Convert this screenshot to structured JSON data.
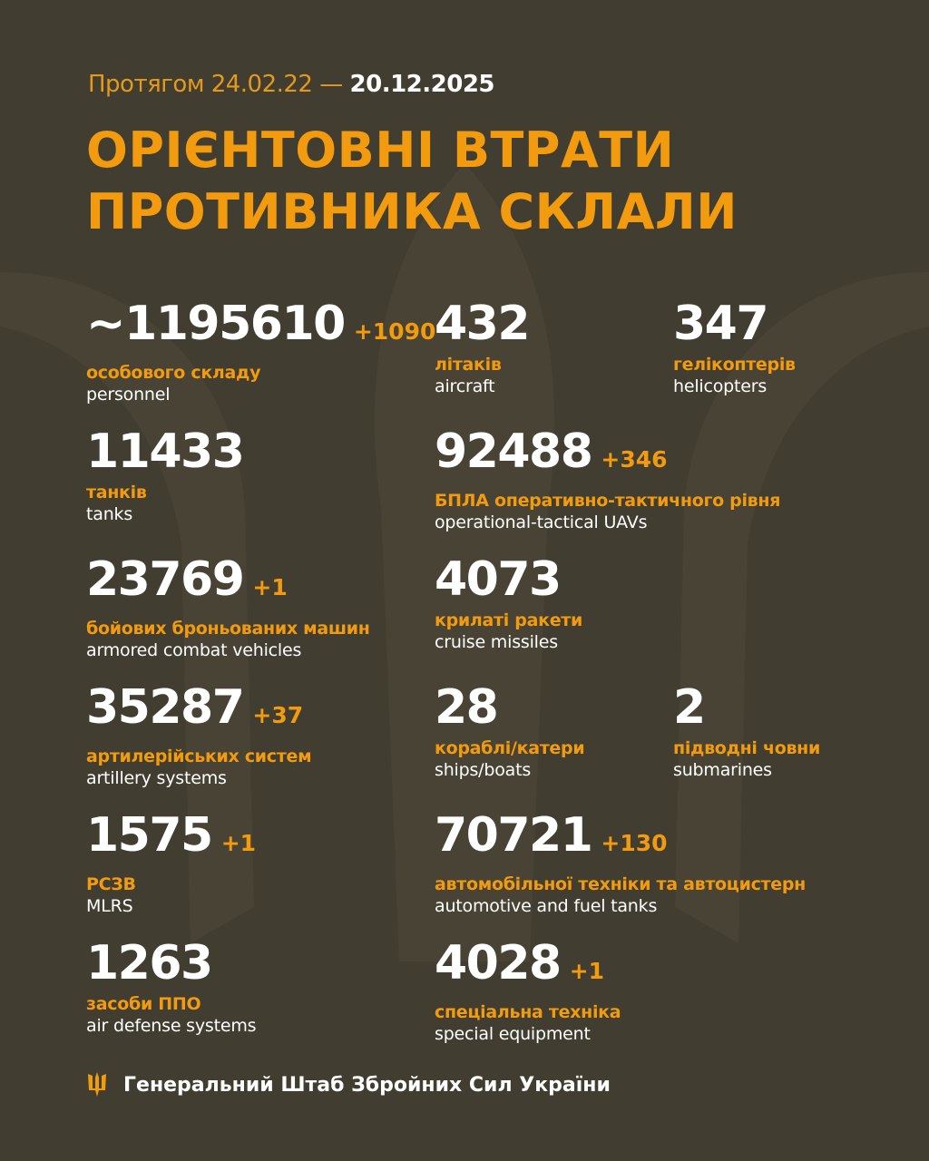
{
  "header": {
    "period_prefix": "Протягом 24.02.22 —",
    "period_end": "20.12.2025",
    "title_line1": "ОРІЄНТОВНІ ВТРАТИ",
    "title_line2": "ПРОТИВНИКА СКЛАЛИ"
  },
  "stats": [
    {
      "value": "~1195610",
      "delta": "+1090",
      "ua": "особового складу",
      "en": "personnel"
    },
    {
      "value": "432",
      "delta": "",
      "ua": "літаків",
      "en": "aircraft"
    },
    {
      "value": "347",
      "delta": "",
      "ua": "гелікоптерів",
      "en": "helicopters"
    },
    {
      "value": "11433",
      "delta": "",
      "ua": "танків",
      "en": "tanks"
    },
    {
      "value": "92488",
      "delta": "+346",
      "ua": "БПЛА оперативно-тактичного рівня",
      "en": "operational-tactical UAVs"
    },
    {
      "value": "23769",
      "delta": "+1",
      "ua": "бойових броньованих машин",
      "en": "armored combat vehicles"
    },
    {
      "value": "4073",
      "delta": "",
      "ua": "крилаті ракети",
      "en": "cruise missiles"
    },
    {
      "value": "35287",
      "delta": "+37",
      "ua": "артилерійських систем",
      "en": "artillery systems"
    },
    {
      "value": "28",
      "delta": "",
      "ua": "кораблі/катери",
      "en": "ships/boats"
    },
    {
      "value": "2",
      "delta": "",
      "ua": "підводні човни",
      "en": "submarines"
    },
    {
      "value": "1575",
      "delta": "+1",
      "ua": "РСЗВ",
      "en": "MLRS"
    },
    {
      "value": "70721",
      "delta": "+130",
      "ua": "автомобільної техніки та автоцистерн",
      "en": "automotive and fuel tanks"
    },
    {
      "value": "1263",
      "delta": "",
      "ua": "засоби ППО",
      "en": "air defense systems"
    },
    {
      "value": "4028",
      "delta": "+1",
      "ua": "спеціальна техніка",
      "en": "special equipment"
    }
  ],
  "footer": {
    "icon": "trident-icon",
    "text": "Генеральний Штаб Збройних Сил України"
  },
  "colors": {
    "background": "#413d30",
    "accent": "#f29b0f",
    "text": "#ffffff"
  }
}
